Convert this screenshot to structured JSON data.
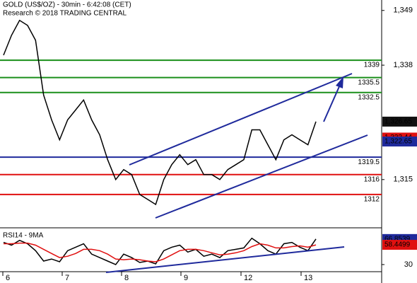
{
  "chart_data": {
    "type": "line",
    "title": "GOLD (US$/OZ) - 30min - 6:42:08 (CET)",
    "subtitle": "Research © 2018 TRADING CENTRAL",
    "day_labels": [
      "6",
      "7",
      "8",
      "9",
      "12",
      "13"
    ],
    "ylim": [
      1305.3,
      1351.1
    ],
    "yticks": [
      {
        "value": 1349,
        "label": "1,349"
      },
      {
        "value": 1338,
        "label": "1,338"
      },
      {
        "value": 1315,
        "label": "1,315"
      }
    ],
    "levels": [
      {
        "value": 1339,
        "color": "#1a8f1a"
      },
      {
        "value": 1335.5,
        "color": "#1a8f1a"
      },
      {
        "value": 1332.5,
        "color": "#1a8f1a"
      },
      {
        "value": 1319.5,
        "color": "#1f2a9c"
      },
      {
        "value": 1316,
        "color": "#e01010"
      },
      {
        "value": 1312,
        "color": "#e01010"
      }
    ],
    "markers": [
      {
        "value": 1326.65,
        "label": "1,326.65",
        "color": "#111111"
      },
      {
        "value": 1323.44,
        "label": "1,323.44",
        "color": "#e01010"
      },
      {
        "value": 1322.65,
        "label": "1,322.65",
        "color": "#1f2a9c"
      }
    ],
    "series": [
      {
        "name": "GOLD",
        "color": "#000000",
        "values": [
          1340,
          1344,
          1347,
          1346,
          1343,
          1332,
          1327,
          1323,
          1327,
          1329,
          1331,
          1327,
          1324,
          1319,
          1315,
          1317,
          1316,
          1312,
          1311,
          1310,
          1315,
          1318,
          1320,
          1318,
          1319,
          1316,
          1316,
          1315,
          1317,
          1318,
          1319,
          1325,
          1325,
          1322,
          1319,
          1323,
          1324,
          1323,
          1322,
          1326.65
        ]
      }
    ],
    "rsi_title": "RSI14 - 9MA",
    "y2lim": [
      13.6,
      82
    ],
    "y2ticks": [
      30
    ],
    "rsi_series": [
      {
        "name": "RSI14",
        "color": "#000000",
        "values": [
          62,
          58,
          65,
          60,
          50,
          35,
          38,
          34,
          50,
          55,
          60,
          45,
          40,
          35,
          30,
          45,
          40,
          33,
          35,
          31,
          50,
          55,
          58,
          48,
          52,
          42,
          45,
          40,
          50,
          52,
          54,
          68,
          60,
          50,
          45,
          60,
          62,
          55,
          50,
          66.8539
        ]
      },
      {
        "name": "9MA",
        "color": "#e01010",
        "values": [
          60,
          60,
          61,
          61,
          58,
          52,
          46,
          40,
          42,
          46,
          52,
          52,
          50,
          45,
          38,
          37,
          38,
          37,
          35,
          34,
          38,
          44,
          50,
          52,
          52,
          50,
          47,
          44,
          45,
          47,
          50,
          56,
          60,
          58,
          54,
          54,
          56,
          57,
          55,
          58.4499
        ]
      }
    ],
    "rsi_markers": [
      {
        "value": 66.8539,
        "color": "#1f2a9c"
      },
      {
        "value": 58.4499,
        "color": "#e01010"
      }
    ]
  }
}
